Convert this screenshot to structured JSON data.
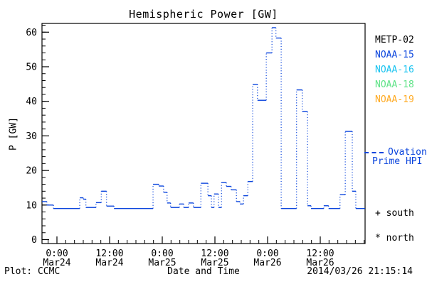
{
  "colors": {
    "axis": "#000000",
    "curve_blue": "#0b45dd",
    "metp02": "#000000",
    "noaa15": "#0b45dd",
    "noaa16": "#18c3f0",
    "noaa18": "#5fe387",
    "noaa19": "#ffaa22"
  },
  "legend": {
    "satellites": [
      {
        "label": "METP-02",
        "color": "#000000"
      },
      {
        "label": "NOAA-15",
        "color": "#0b45dd"
      },
      {
        "label": "NOAA-16",
        "color": "#18c3f0"
      },
      {
        "label": "NOAA-18",
        "color": "#5fe387"
      },
      {
        "label": "NOAA-19",
        "color": "#ffaa22"
      }
    ],
    "ovation_line1": "Ovation",
    "ovation_line2": "Prime HPI",
    "marker_south": "+ south",
    "marker_north": "* north"
  },
  "footer": {
    "left": "Plot: CCMC",
    "right": "2014/03/26 21:15:14"
  },
  "chart_data": {
    "type": "line",
    "title": "Hemispheric Power [GW]",
    "xlabel": "Date and Time",
    "ylabel": "P [GW]",
    "ylim": [
      0,
      60
    ],
    "y_ticks": [
      0,
      10,
      20,
      30,
      40,
      50,
      60
    ],
    "y_minor_step": 2,
    "x_minor_step_hours": 2,
    "x_hours_origin": "Mar24 0:00",
    "xlim_hours": [
      -3.4,
      70.2
    ],
    "x_ticks": [
      {
        "h": 0,
        "time": "0:00",
        "date": "Mar24"
      },
      {
        "h": 12,
        "time": "12:00",
        "date": "Mar24"
      },
      {
        "h": 24,
        "time": "0:00",
        "date": "Mar25"
      },
      {
        "h": 36,
        "time": "12:00",
        "date": "Mar25"
      },
      {
        "h": 48,
        "time": "0:00",
        "date": "Mar26"
      },
      {
        "h": 60,
        "time": "12:00",
        "date": "Mar26"
      }
    ],
    "grid": false,
    "legend_position": "right-outside",
    "series": [
      {
        "name": "Ovation Prime HPI",
        "color": "#0b45dd",
        "style": "stepped, dotted vertical transitions",
        "t_hours": [
          -3.4,
          -2.3,
          -0.8,
          5.2,
          6.0,
          6.6,
          8.9,
          10.1,
          11.3,
          13.0,
          21.9,
          23.2,
          24.3,
          25.1,
          25.9,
          27.9,
          28.9,
          30.0,
          31.1,
          32.8,
          34.4,
          35.2,
          35.8,
          36.8,
          37.5,
          38.6,
          39.7,
          40.9,
          41.7,
          42.5,
          43.5,
          44.6,
          45.7,
          47.7,
          49.0,
          49.9,
          51.1,
          54.6,
          55.9,
          57.1,
          57.9,
          60.8,
          61.9,
          64.5,
          65.7,
          67.3,
          68.1
        ],
        "p_gw": [
          11.0,
          10.0,
          9.0,
          12.1,
          11.7,
          9.3,
          10.7,
          14.0,
          9.7,
          9.0,
          16.0,
          15.5,
          13.7,
          10.6,
          9.3,
          10.3,
          9.3,
          10.6,
          9.3,
          16.3,
          12.7,
          9.3,
          13.2,
          9.3,
          16.5,
          15.4,
          14.4,
          11.0,
          10.3,
          12.7,
          16.8,
          44.9,
          40.3,
          54.0,
          61.3,
          58.3,
          9.0,
          43.3,
          37.0,
          9.8,
          9.0,
          9.8,
          9.0,
          13.0,
          31.3,
          14.0,
          9.0
        ],
        "t_end_hours": 70.2
      }
    ]
  }
}
